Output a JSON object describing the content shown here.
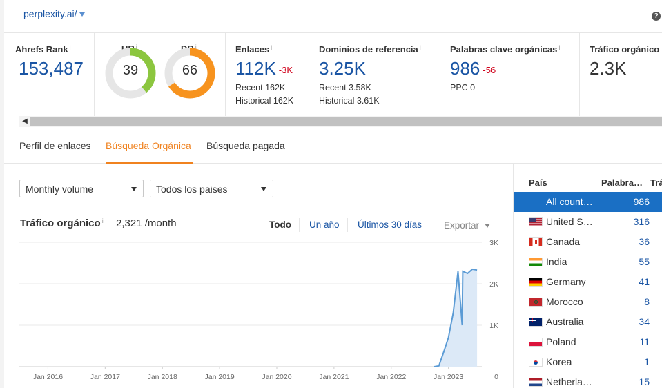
{
  "site": {
    "domain": "perplexity.ai/"
  },
  "help_icon": "?",
  "metrics": {
    "ahrefs_rank": {
      "label": "Ahrefs Rank",
      "value": "153,487"
    },
    "ur": {
      "label": "UR",
      "value": "39",
      "score": 39,
      "color": "#8cc63f"
    },
    "dr": {
      "label": "DR",
      "value": "66",
      "score": 66,
      "color": "#f7931e"
    },
    "links": {
      "label": "Enlaces",
      "value": "112K",
      "delta": "-3K",
      "recent": "Recent 162K",
      "historical": "Historical 162K"
    },
    "ref_domains": {
      "label": "Dominios de referencia",
      "value": "3.25K",
      "recent": "Recent 3.58K",
      "historical": "Historical 3.61K"
    },
    "organic_keywords": {
      "label": "Palabras clave orgánicas",
      "value": "986",
      "delta": "-56",
      "ppc": "PPC 0"
    },
    "organic_traffic": {
      "label": "Tráfico orgánico",
      "value": "2.3K"
    }
  },
  "info_mark": "i",
  "tabs": [
    {
      "label": "Perfil de enlaces"
    },
    {
      "label": "Búsqueda Orgánica",
      "active": true
    },
    {
      "label": "Búsqueda pagada"
    }
  ],
  "filters": {
    "volume": "Monthly volume",
    "country": "Todos los paises"
  },
  "traffic_chart": {
    "title": "Tráfico orgánico",
    "value": "2,321 /month",
    "ranges": [
      "Todo",
      "Un año",
      "Últimos 30 días"
    ],
    "export_label": "Exportar"
  },
  "chart_data": {
    "type": "area",
    "title": "",
    "xlabel": "",
    "ylabel": "",
    "x_ticks": [
      "Jan 2016",
      "Jan 2017",
      "Jan 2018",
      "Jan 2019",
      "Jan 2020",
      "Jan 2021",
      "Jan 2022",
      "Jan 2023"
    ],
    "y_ticks": [
      "3K",
      "2K",
      "1K",
      "0"
    ],
    "ylim": [
      0,
      3000
    ],
    "xlim": [
      "2015-07",
      "2023-08"
    ],
    "series": [
      {
        "color": "#5b9bd5",
        "points": [
          [
            "2022-10",
            0
          ],
          [
            "2022-11",
            20
          ],
          [
            "2022-12",
            350
          ],
          [
            "2023-01",
            700
          ],
          [
            "2023-02",
            1300
          ],
          [
            "2023-03",
            2300
          ],
          [
            "2023-03",
            1000
          ],
          [
            "2023-04",
            2300
          ],
          [
            "2023-05",
            2250
          ],
          [
            "2023-06",
            2350
          ],
          [
            "2023-07",
            2330
          ]
        ]
      }
    ],
    "grid": true
  },
  "country_table": {
    "headers": {
      "country": "País",
      "keywords": "Palabra…",
      "traffic": "Trá"
    },
    "rows": [
      {
        "name": "All count…",
        "value": "986",
        "flag": "none",
        "selected": true
      },
      {
        "name": "United S…",
        "value": "316",
        "flag": "us"
      },
      {
        "name": "Canada",
        "value": "36",
        "flag": "ca"
      },
      {
        "name": "India",
        "value": "55",
        "flag": "in"
      },
      {
        "name": "Germany",
        "value": "41",
        "flag": "de"
      },
      {
        "name": "Morocco",
        "value": "8",
        "flag": "ma"
      },
      {
        "name": "Australia",
        "value": "34",
        "flag": "au"
      },
      {
        "name": "Poland",
        "value": "11",
        "flag": "pl"
      },
      {
        "name": "Korea",
        "value": "1",
        "flag": "kr"
      },
      {
        "name": "Netherla…",
        "value": "15",
        "flag": "nl"
      }
    ]
  }
}
